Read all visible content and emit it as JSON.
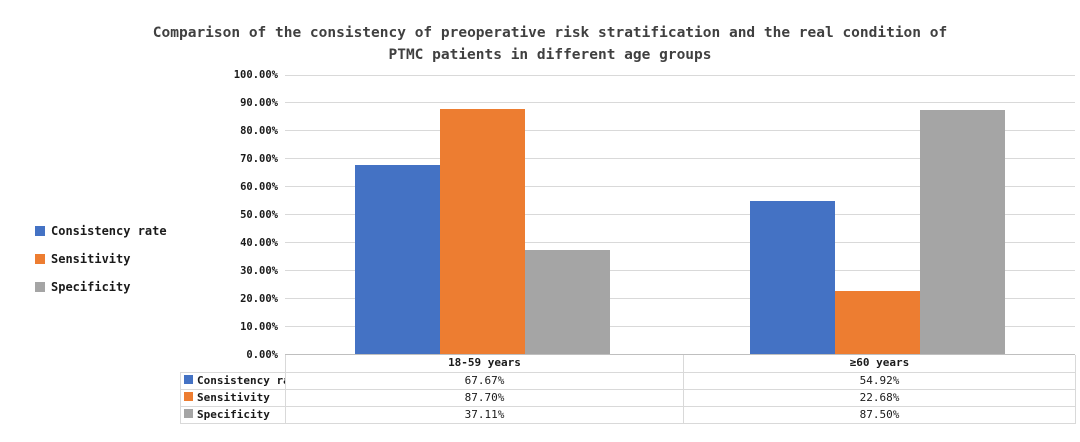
{
  "chart_data": {
    "type": "bar",
    "title": "Comparison of the consistency of preoperative risk stratification and the real condition of PTMC patients in different age groups",
    "title_lines": [
      "Comparison of the consistency of preoperative risk stratification and the real condition of",
      "PTMC patients in different age groups"
    ],
    "categories": [
      "18-59 years",
      "≥60 years"
    ],
    "series": [
      {
        "name": "Consistency rate",
        "color": "#4472C4",
        "values": [
          67.67,
          54.92
        ],
        "labels": [
          "67.67%",
          "54.92%"
        ]
      },
      {
        "name": "Sensitivity",
        "color": "#ED7D31",
        "values": [
          87.7,
          22.68
        ],
        "labels": [
          "87.70%",
          "22.68%"
        ]
      },
      {
        "name": "Specificity",
        "color": "#A5A5A5",
        "values": [
          37.11,
          87.5
        ],
        "labels": [
          "37.11%",
          "87.50%"
        ]
      }
    ],
    "xlabel": "",
    "ylabel": "",
    "ylim": [
      0,
      100
    ],
    "ytick_step": 10,
    "yticks": [
      "100.00%",
      "90.00%",
      "80.00%",
      "70.00%",
      "60.00%",
      "50.00%",
      "40.00%",
      "30.00%",
      "20.00%",
      "10.00%",
      "0.00%"
    ],
    "grid": true,
    "legend_position": "left",
    "data_table_shown": true
  }
}
